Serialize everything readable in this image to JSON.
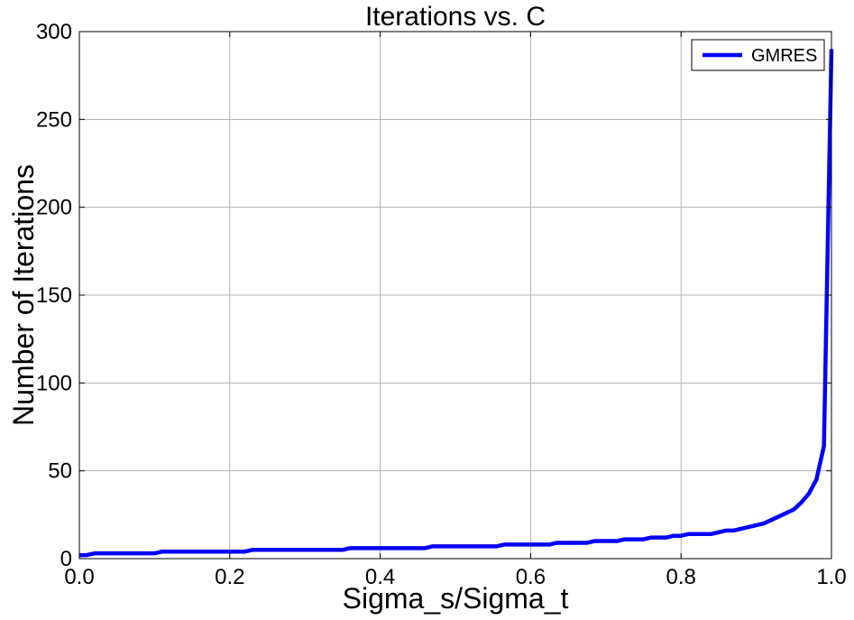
{
  "chart_data": {
    "type": "line",
    "title": "Iterations vs. C",
    "xlabel": "Sigma_s/Sigma_t",
    "ylabel": "Number of Iterations",
    "xlim": [
      0.0,
      1.0
    ],
    "ylim": [
      0,
      300
    ],
    "xticks": [
      "0.0",
      "0.2",
      "0.4",
      "0.6",
      "0.8",
      "1.0"
    ],
    "yticks": [
      "0",
      "50",
      "100",
      "150",
      "200",
      "250",
      "300"
    ],
    "grid": true,
    "legend_position": "top-right",
    "series": [
      {
        "name": "GMRES",
        "color": "#0000ff",
        "x": [
          0.0,
          0.01,
          0.02,
          0.1,
          0.11,
          0.22,
          0.23,
          0.35,
          0.36,
          0.46,
          0.47,
          0.555,
          0.565,
          0.625,
          0.635,
          0.675,
          0.685,
          0.715,
          0.725,
          0.75,
          0.76,
          0.78,
          0.79,
          0.8,
          0.81,
          0.82,
          0.84,
          0.86,
          0.87,
          0.91,
          0.93,
          0.95,
          0.96,
          0.97,
          0.98,
          0.99,
          1.0
        ],
        "y": [
          2,
          2,
          3,
          3,
          4,
          4,
          5,
          5,
          6,
          6,
          7,
          7,
          8,
          8,
          9,
          9,
          10,
          10,
          11,
          11,
          12,
          12,
          13,
          13,
          14,
          14,
          14,
          16,
          16,
          20,
          24,
          28,
          32,
          37,
          45,
          64,
          290
        ]
      }
    ]
  }
}
